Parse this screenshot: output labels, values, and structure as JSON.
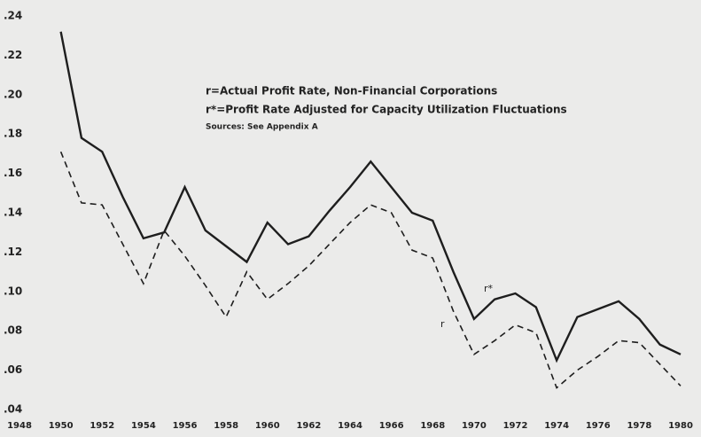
{
  "chart_data": {
    "type": "line",
    "annotations": [
      "r=Actual Profit Rate, Non-Financial Corporations",
      "r*=Profit Rate Adjusted for Capacity Utilization Fluctuations",
      "Sources: See Appendix A"
    ],
    "x": [
      1950,
      1951,
      1952,
      1953,
      1954,
      1955,
      1956,
      1957,
      1958,
      1959,
      1960,
      1961,
      1962,
      1963,
      1964,
      1965,
      1966,
      1967,
      1968,
      1969,
      1970,
      1971,
      1972,
      1973,
      1974,
      1975,
      1976,
      1977,
      1978,
      1979,
      1980
    ],
    "series": [
      {
        "name": "r*",
        "color": "#1e1e1e",
        "dash": false,
        "values": [
          0.232,
          0.178,
          0.171,
          0.148,
          0.127,
          0.13,
          0.153,
          0.131,
          0.123,
          0.115,
          0.135,
          0.124,
          0.128,
          0.141,
          0.153,
          0.166,
          0.153,
          0.14,
          0.136,
          0.11,
          0.086,
          0.096,
          0.099,
          0.092,
          0.065,
          0.087,
          0.091,
          0.095,
          0.086,
          0.073,
          0.068
        ]
      },
      {
        "name": "r",
        "color": "#1e1e1e",
        "dash": true,
        "values": [
          0.171,
          0.145,
          0.144,
          0.124,
          0.104,
          0.131,
          0.118,
          0.103,
          0.087,
          0.11,
          0.096,
          0.104,
          0.113,
          0.124,
          0.135,
          0.144,
          0.14,
          0.121,
          0.117,
          0.09,
          0.068,
          0.075,
          0.083,
          0.079,
          0.051,
          0.06,
          0.067,
          0.075,
          0.074,
          0.063,
          0.052
        ]
      }
    ],
    "xlim": [
      1948,
      1980
    ],
    "xticks": [
      1948,
      1950,
      1952,
      1954,
      1956,
      1958,
      1960,
      1962,
      1964,
      1966,
      1968,
      1970,
      1972,
      1974,
      1976,
      1978,
      1980
    ],
    "ylim": [
      0.04,
      0.24
    ],
    "yticks": [
      {
        "value": 0.04,
        "label": ".04"
      },
      {
        "value": 0.06,
        "label": ".06"
      },
      {
        "value": 0.08,
        "label": ".08"
      },
      {
        "value": 0.1,
        "label": ".10"
      },
      {
        "value": 0.12,
        "label": ".12"
      },
      {
        "value": 0.14,
        "label": ".14"
      },
      {
        "value": 0.16,
        "label": ".16"
      },
      {
        "value": 0.18,
        "label": ".18"
      },
      {
        "value": 0.2,
        "label": ".20"
      },
      {
        "value": 0.22,
        "label": ".22"
      },
      {
        "value": 0.24,
        "label": ".24"
      }
    ]
  }
}
